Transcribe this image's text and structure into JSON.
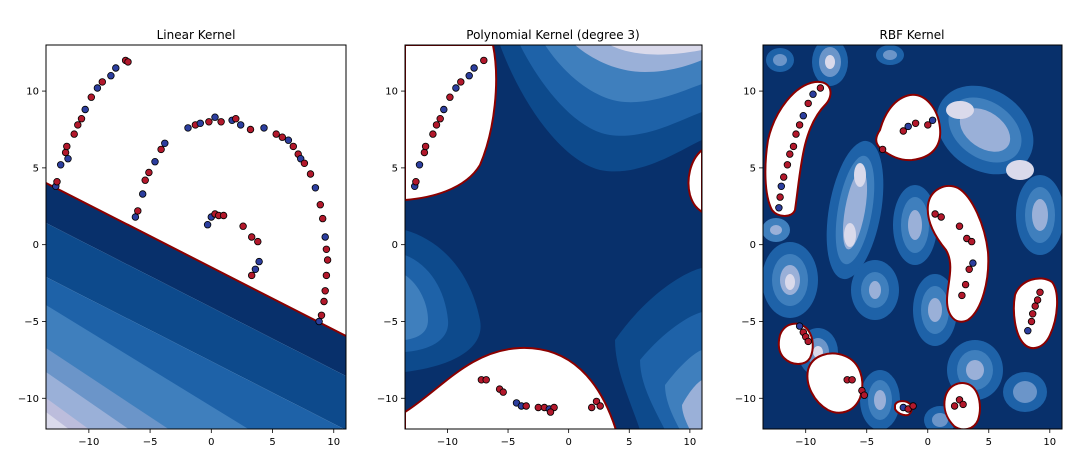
{
  "chart_data": [
    {
      "type": "contour",
      "title": "Linear Kernel",
      "xlim": [
        -13.5,
        11
      ],
      "ylim": [
        -12,
        13
      ],
      "xticks": [
        -10,
        -5,
        0,
        5,
        10
      ],
      "yticks": [
        -10,
        -5,
        0,
        5,
        10
      ],
      "boundary": "line",
      "boundary_points": [
        [
          -13.5,
          4.0
        ],
        [
          11,
          -6.0
        ]
      ],
      "levels": 6,
      "colormap": "Blues",
      "points": [
        {
          "x": -12.7,
          "y": 3.8,
          "c": "blue"
        },
        {
          "x": -12.6,
          "y": 4.1,
          "c": "red"
        },
        {
          "x": -12.3,
          "y": 5.2,
          "c": "blue"
        },
        {
          "x": -11.9,
          "y": 6.0,
          "c": "red"
        },
        {
          "x": -11.8,
          "y": 6.4,
          "c": "red"
        },
        {
          "x": -11.7,
          "y": 5.6,
          "c": "blue"
        },
        {
          "x": -11.2,
          "y": 7.2,
          "c": "red"
        },
        {
          "x": -10.9,
          "y": 7.8,
          "c": "red"
        },
        {
          "x": -10.6,
          "y": 8.2,
          "c": "red"
        },
        {
          "x": -10.3,
          "y": 8.8,
          "c": "blue"
        },
        {
          "x": -9.8,
          "y": 9.6,
          "c": "red"
        },
        {
          "x": -9.3,
          "y": 10.2,
          "c": "blue"
        },
        {
          "x": -8.9,
          "y": 10.6,
          "c": "red"
        },
        {
          "x": -8.2,
          "y": 11.0,
          "c": "blue"
        },
        {
          "x": -7.8,
          "y": 11.5,
          "c": "blue"
        },
        {
          "x": -7.0,
          "y": 12.0,
          "c": "red"
        },
        {
          "x": -6.8,
          "y": 11.9,
          "c": "red"
        },
        {
          "x": -6.2,
          "y": 1.8,
          "c": "blue"
        },
        {
          "x": -6.0,
          "y": 2.2,
          "c": "red"
        },
        {
          "x": -5.6,
          "y": 3.3,
          "c": "blue"
        },
        {
          "x": -5.4,
          "y": 4.2,
          "c": "red"
        },
        {
          "x": -5.1,
          "y": 4.7,
          "c": "red"
        },
        {
          "x": -4.6,
          "y": 5.4,
          "c": "blue"
        },
        {
          "x": -4.1,
          "y": 6.2,
          "c": "red"
        },
        {
          "x": -3.8,
          "y": 6.6,
          "c": "blue"
        },
        {
          "x": -1.9,
          "y": 7.6,
          "c": "blue"
        },
        {
          "x": -1.3,
          "y": 7.8,
          "c": "red"
        },
        {
          "x": -0.9,
          "y": 7.9,
          "c": "blue"
        },
        {
          "x": -0.2,
          "y": 8.0,
          "c": "red"
        },
        {
          "x": 0.3,
          "y": 8.3,
          "c": "blue"
        },
        {
          "x": 0.8,
          "y": 8.0,
          "c": "red"
        },
        {
          "x": 1.7,
          "y": 8.1,
          "c": "blue"
        },
        {
          "x": 2.0,
          "y": 8.2,
          "c": "red"
        },
        {
          "x": 2.4,
          "y": 7.8,
          "c": "blue"
        },
        {
          "x": 3.2,
          "y": 7.5,
          "c": "red"
        },
        {
          "x": 4.3,
          "y": 7.6,
          "c": "blue"
        },
        {
          "x": 5.3,
          "y": 7.2,
          "c": "red"
        },
        {
          "x": 5.8,
          "y": 7.0,
          "c": "red"
        },
        {
          "x": 6.3,
          "y": 6.8,
          "c": "blue"
        },
        {
          "x": 6.7,
          "y": 6.4,
          "c": "red"
        },
        {
          "x": 7.1,
          "y": 5.9,
          "c": "red"
        },
        {
          "x": 7.3,
          "y": 5.6,
          "c": "blue"
        },
        {
          "x": 7.6,
          "y": 5.3,
          "c": "red"
        },
        {
          "x": 8.1,
          "y": 4.6,
          "c": "red"
        },
        {
          "x": 8.5,
          "y": 3.7,
          "c": "blue"
        },
        {
          "x": 8.9,
          "y": 2.6,
          "c": "red"
        },
        {
          "x": 9.1,
          "y": 1.7,
          "c": "red"
        },
        {
          "x": 9.3,
          "y": 0.5,
          "c": "blue"
        },
        {
          "x": 9.4,
          "y": -0.3,
          "c": "red"
        },
        {
          "x": 9.5,
          "y": -1.0,
          "c": "red"
        },
        {
          "x": 9.4,
          "y": -2.0,
          "c": "red"
        },
        {
          "x": 9.3,
          "y": -3.0,
          "c": "red"
        },
        {
          "x": 9.2,
          "y": -3.7,
          "c": "red"
        },
        {
          "x": 9.0,
          "y": -4.6,
          "c": "red"
        },
        {
          "x": 8.8,
          "y": -5.0,
          "c": "blue"
        },
        {
          "x": -0.3,
          "y": 1.3,
          "c": "blue"
        },
        {
          "x": 0.0,
          "y": 1.8,
          "c": "blue"
        },
        {
          "x": 0.3,
          "y": 2.0,
          "c": "red"
        },
        {
          "x": 0.6,
          "y": 1.9,
          "c": "red"
        },
        {
          "x": 1.0,
          "y": 1.9,
          "c": "red"
        },
        {
          "x": 2.6,
          "y": 1.2,
          "c": "red"
        },
        {
          "x": 3.3,
          "y": 0.5,
          "c": "red"
        },
        {
          "x": 3.8,
          "y": 0.2,
          "c": "red"
        },
        {
          "x": 3.9,
          "y": -1.1,
          "c": "blue"
        },
        {
          "x": 3.6,
          "y": -1.6,
          "c": "blue"
        },
        {
          "x": 3.3,
          "y": -2.0,
          "c": "red"
        }
      ]
    },
    {
      "type": "contour",
      "title": "Polynomial Kernel (degree 3)",
      "xlim": [
        -13.5,
        11
      ],
      "ylim": [
        -12,
        13
      ],
      "xticks": [
        -10,
        -5,
        0,
        5,
        10
      ],
      "yticks": [
        -10,
        -5,
        0,
        5,
        10
      ],
      "boundary": "polynomial",
      "levels": 5,
      "colormap": "Blues",
      "points": [
        {
          "x": -12.7,
          "y": 3.8,
          "c": "blue"
        },
        {
          "x": -12.6,
          "y": 4.1,
          "c": "red"
        },
        {
          "x": -12.3,
          "y": 5.2,
          "c": "blue"
        },
        {
          "x": -11.9,
          "y": 6.0,
          "c": "red"
        },
        {
          "x": -11.8,
          "y": 6.4,
          "c": "red"
        },
        {
          "x": -11.2,
          "y": 7.2,
          "c": "red"
        },
        {
          "x": -10.9,
          "y": 7.8,
          "c": "red"
        },
        {
          "x": -10.6,
          "y": 8.2,
          "c": "red"
        },
        {
          "x": -10.3,
          "y": 8.8,
          "c": "blue"
        },
        {
          "x": -9.8,
          "y": 9.6,
          "c": "red"
        },
        {
          "x": -9.3,
          "y": 10.2,
          "c": "blue"
        },
        {
          "x": -8.9,
          "y": 10.6,
          "c": "red"
        },
        {
          "x": -8.2,
          "y": 11.0,
          "c": "blue"
        },
        {
          "x": -7.8,
          "y": 11.5,
          "c": "blue"
        },
        {
          "x": -7.0,
          "y": 12.0,
          "c": "red"
        },
        {
          "x": -7.2,
          "y": -8.8,
          "c": "red"
        },
        {
          "x": -6.8,
          "y": -8.8,
          "c": "red"
        },
        {
          "x": -5.7,
          "y": -9.4,
          "c": "red"
        },
        {
          "x": -5.4,
          "y": -9.6,
          "c": "red"
        },
        {
          "x": -4.3,
          "y": -10.3,
          "c": "blue"
        },
        {
          "x": -3.9,
          "y": -10.5,
          "c": "blue"
        },
        {
          "x": -3.5,
          "y": -10.5,
          "c": "red"
        },
        {
          "x": -2.5,
          "y": -10.6,
          "c": "red"
        },
        {
          "x": -2.0,
          "y": -10.6,
          "c": "red"
        },
        {
          "x": -1.6,
          "y": -10.7,
          "c": "blue"
        },
        {
          "x": -1.2,
          "y": -10.6,
          "c": "red"
        },
        {
          "x": -1.5,
          "y": -10.9,
          "c": "red"
        },
        {
          "x": 1.9,
          "y": -10.6,
          "c": "red"
        },
        {
          "x": 2.3,
          "y": -10.2,
          "c": "red"
        },
        {
          "x": 2.6,
          "y": -10.5,
          "c": "red"
        }
      ]
    },
    {
      "type": "contour",
      "title": "RBF Kernel",
      "xlim": [
        -13.5,
        11
      ],
      "ylim": [
        -12,
        13
      ],
      "xticks": [
        -10,
        -5,
        0,
        5,
        10
      ],
      "yticks": [
        -10,
        -5,
        0,
        5,
        10
      ],
      "boundary": "rbf",
      "levels": 5,
      "colormap": "Blues",
      "points": [
        {
          "x": -12.2,
          "y": 2.4,
          "c": "blue"
        },
        {
          "x": -12.1,
          "y": 3.1,
          "c": "red"
        },
        {
          "x": -12.0,
          "y": 3.8,
          "c": "blue"
        },
        {
          "x": -11.8,
          "y": 4.4,
          "c": "red"
        },
        {
          "x": -11.5,
          "y": 5.2,
          "c": "red"
        },
        {
          "x": -11.3,
          "y": 5.9,
          "c": "red"
        },
        {
          "x": -11.0,
          "y": 6.4,
          "c": "red"
        },
        {
          "x": -10.8,
          "y": 7.2,
          "c": "red"
        },
        {
          "x": -10.5,
          "y": 7.8,
          "c": "red"
        },
        {
          "x": -10.2,
          "y": 8.4,
          "c": "blue"
        },
        {
          "x": -9.8,
          "y": 9.2,
          "c": "red"
        },
        {
          "x": -9.4,
          "y": 9.8,
          "c": "blue"
        },
        {
          "x": -8.8,
          "y": 10.2,
          "c": "red"
        },
        {
          "x": -3.7,
          "y": 6.2,
          "c": "red"
        },
        {
          "x": -2.0,
          "y": 7.4,
          "c": "red"
        },
        {
          "x": -1.6,
          "y": 7.7,
          "c": "blue"
        },
        {
          "x": -1.0,
          "y": 7.9,
          "c": "red"
        },
        {
          "x": 0.0,
          "y": 7.8,
          "c": "red"
        },
        {
          "x": 0.4,
          "y": 8.1,
          "c": "blue"
        },
        {
          "x": 0.6,
          "y": 2.0,
          "c": "red"
        },
        {
          "x": 1.1,
          "y": 1.8,
          "c": "red"
        },
        {
          "x": 2.6,
          "y": 1.2,
          "c": "red"
        },
        {
          "x": 3.2,
          "y": 0.4,
          "c": "red"
        },
        {
          "x": 3.6,
          "y": 0.2,
          "c": "red"
        },
        {
          "x": 3.7,
          "y": -1.2,
          "c": "blue"
        },
        {
          "x": 3.4,
          "y": -1.6,
          "c": "red"
        },
        {
          "x": 3.1,
          "y": -2.6,
          "c": "red"
        },
        {
          "x": 2.8,
          "y": -3.3,
          "c": "red"
        },
        {
          "x": 8.2,
          "y": -5.6,
          "c": "blue"
        },
        {
          "x": 8.5,
          "y": -5.0,
          "c": "red"
        },
        {
          "x": 8.6,
          "y": -4.5,
          "c": "red"
        },
        {
          "x": 8.8,
          "y": -4.0,
          "c": "red"
        },
        {
          "x": 9.0,
          "y": -3.6,
          "c": "red"
        },
        {
          "x": 9.2,
          "y": -3.1,
          "c": "red"
        },
        {
          "x": -10.5,
          "y": -5.3,
          "c": "blue"
        },
        {
          "x": -10.2,
          "y": -5.7,
          "c": "red"
        },
        {
          "x": -10.0,
          "y": -6.0,
          "c": "red"
        },
        {
          "x": -9.8,
          "y": -6.3,
          "c": "red"
        },
        {
          "x": -6.6,
          "y": -8.8,
          "c": "red"
        },
        {
          "x": -6.2,
          "y": -8.8,
          "c": "red"
        },
        {
          "x": -5.4,
          "y": -9.5,
          "c": "red"
        },
        {
          "x": -5.2,
          "y": -9.8,
          "c": "red"
        },
        {
          "x": -2.0,
          "y": -10.6,
          "c": "blue"
        },
        {
          "x": -1.6,
          "y": -10.7,
          "c": "red"
        },
        {
          "x": -1.2,
          "y": -10.5,
          "c": "red"
        },
        {
          "x": 2.2,
          "y": -10.5,
          "c": "red"
        },
        {
          "x": 2.6,
          "y": -10.1,
          "c": "red"
        },
        {
          "x": 2.9,
          "y": -10.4,
          "c": "red"
        }
      ]
    }
  ],
  "style": {
    "red": "#b2182b",
    "blue": "#2c3e9e",
    "boundary": "#8b0000",
    "blues": [
      "#ffffff",
      "#f0eef6",
      "#dadaeb",
      "#bcbddc",
      "#9ab0d8",
      "#6b95c9",
      "#3f7fbd",
      "#1e62a8",
      "#0d4a8c",
      "#08306b"
    ]
  }
}
